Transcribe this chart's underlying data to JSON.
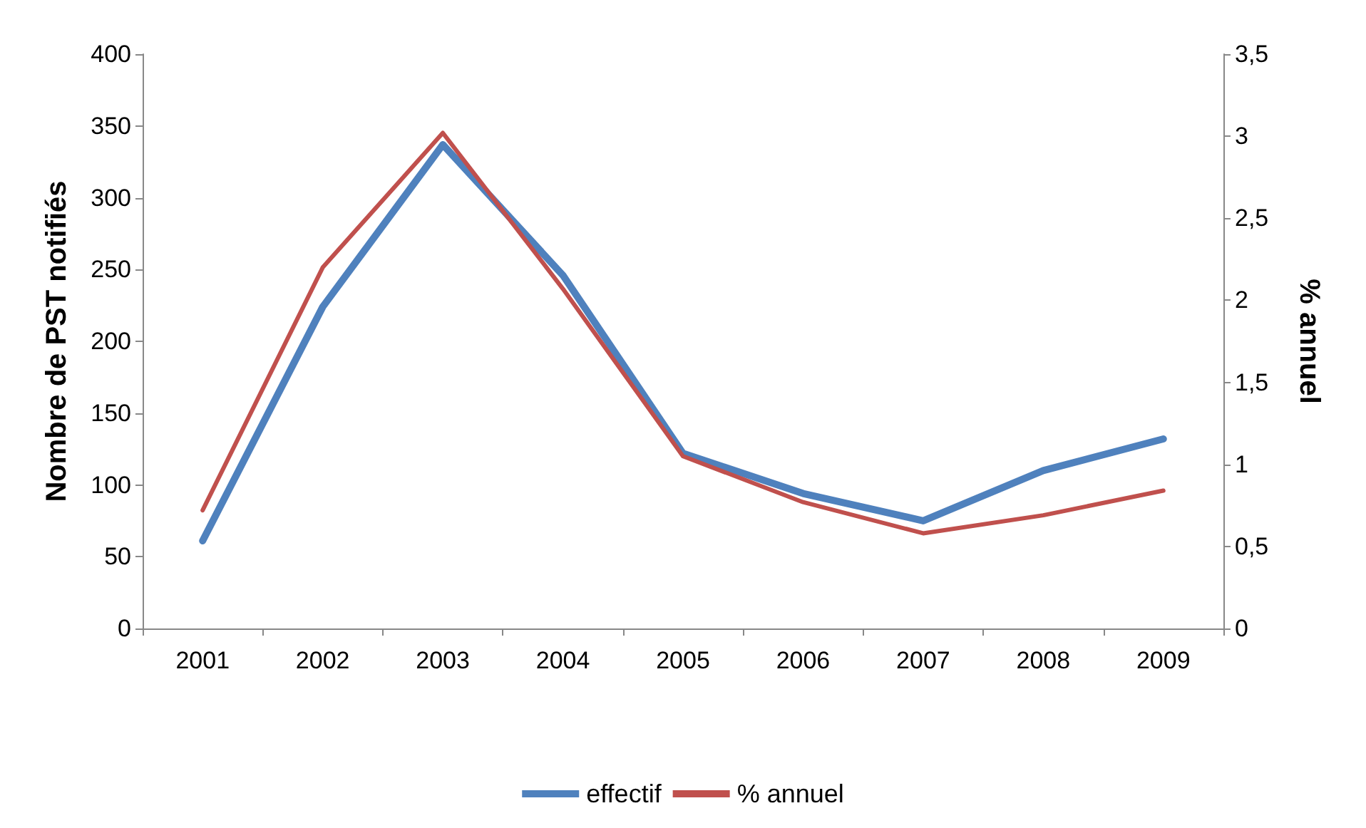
{
  "chart_data": {
    "type": "line",
    "categories": [
      "2001",
      "2002",
      "2003",
      "2004",
      "2005",
      "2006",
      "2007",
      "2008",
      "2009"
    ],
    "ylabel": "Nombre de PST notifiés",
    "y2label": "% annuel",
    "ylim": [
      0,
      400
    ],
    "yticks": [
      0,
      50,
      100,
      150,
      200,
      250,
      300,
      350,
      400
    ],
    "y2lim": [
      0,
      3.5
    ],
    "y2ticks": [
      0,
      {
        "value": 0.5,
        "label": "0,5"
      },
      1,
      {
        "value": 1.5,
        "label": "1,5"
      },
      2,
      {
        "value": 2.5,
        "label": "2,5"
      },
      3,
      {
        "value": 3.5,
        "label": "3,5"
      }
    ],
    "grid": false,
    "legend": "bottom",
    "marker": "none",
    "line_style": "solid",
    "series": [
      {
        "name": "effectif",
        "color": "#4f81bd",
        "values": [
          61,
          224,
          337,
          246,
          122,
          94,
          75,
          110,
          132
        ]
      },
      {
        "name": "% annuel",
        "color": "#c0504d",
        "axis": "y2",
        "values": [
          0.72,
          2.2,
          3.02,
          2.07,
          1.05,
          0.77,
          0.58,
          0.69,
          0.84
        ]
      }
    ]
  }
}
